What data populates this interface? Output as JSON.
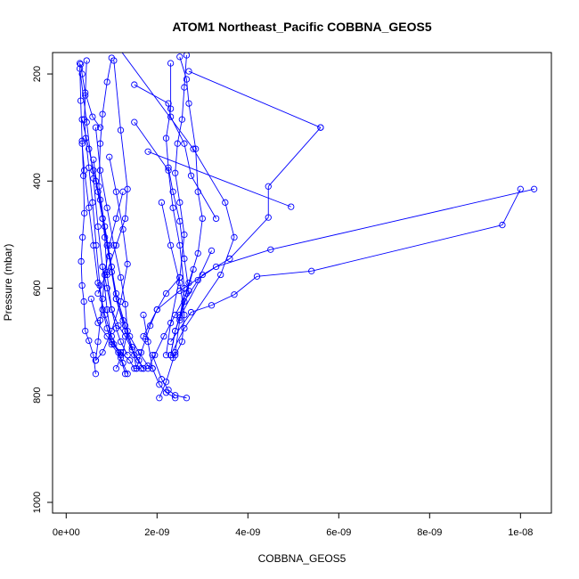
{
  "chart_data": {
    "type": "line",
    "title": "ATOM1 Northeast_Pacific COBBNA_GEOS5",
    "xlabel": "COBBNA_GEOS5",
    "ylabel": "Pressure (mbar)",
    "xlim": [
      -3e-10,
      1.068e-08
    ],
    "ylim": [
      1020,
      160
    ],
    "y_reversed": true,
    "x_ticks": [
      0,
      2e-09,
      4e-09,
      6e-09,
      8e-09,
      1e-08
    ],
    "x_tick_labels": [
      "0e+00",
      "2e-09",
      "4e-09",
      "6e-09",
      "8e-09",
      "1e-08"
    ],
    "y_ticks": [
      200,
      400,
      600,
      800,
      1000
    ],
    "y_tick_labels": [
      "200",
      "400",
      "600",
      "800",
      "1000"
    ],
    "series_color": "#0000ff",
    "marker": "open-circle",
    "series": [
      {
        "x": [
          3e-10,
          3.2e-10,
          3.5e-10,
          3.8e-10,
          4e-10,
          3.6e-10,
          3.3e-10,
          3.5e-10,
          3.9e-10,
          4.2e-10,
          5e-10,
          6e-10,
          6.5e-10
        ],
        "y": [
          180,
          250,
          325,
          390,
          460,
          505,
          550,
          595,
          625,
          680,
          698,
          725,
          760
        ]
      },
      {
        "x": [
          4.5e-10,
          4.2e-10,
          4e-10,
          4.3e-10,
          5e-10,
          5.8e-10,
          6.6e-10,
          7.4e-10,
          8e-10,
          9e-10,
          1e-09,
          1.2e-09,
          1.3e-09
        ],
        "y": [
          175,
          240,
          285,
          320,
          375,
          440,
          520,
          595,
          640,
          675,
          705,
          730,
          760
        ]
      },
      {
        "x": [
          1e-09,
          9e-10,
          8e-10,
          7.5e-10,
          7.2e-10,
          8.5e-10,
          1e-09,
          1.1e-09,
          1.3e-09,
          1.5e-09,
          1.7e-09
        ],
        "y": [
          170,
          215,
          275,
          330,
          410,
          485,
          560,
          620,
          680,
          725,
          750
        ]
      },
      {
        "x": [
          1.05e-09,
          1.2e-09,
          1.35e-09,
          1.3e-09,
          1.1e-09,
          9e-10,
          7e-10
        ],
        "y": [
          175,
          305,
          415,
          470,
          520,
          570,
          610
        ]
      },
      {
        "x": [
          1e-08,
          9.6e-09,
          5.4e-09,
          4.2e-09,
          3.7e-09,
          3.2e-09,
          2.75e-09,
          2.3e-09
        ],
        "y": [
          415,
          482,
          568,
          578,
          612,
          632,
          645,
          700
        ]
      },
      {
        "x": [
          1.03e-08,
          4.5e-09,
          3.3e-09,
          2.5e-09,
          2e-09,
          1.7e-09
        ],
        "y": [
          415,
          528,
          560,
          605,
          640,
          690
        ]
      },
      {
        "x": [
          5.6e-09,
          4.45e-09,
          4.45e-09,
          3.6e-09,
          3e-09,
          2.5e-09
        ],
        "y": [
          300,
          410,
          468,
          545,
          575,
          655
        ]
      },
      {
        "x": [
          2.7e-09,
          5.6e-09
        ],
        "y": [
          195,
          300
        ]
      },
      {
        "x": [
          1.5e-09,
          2.25e-09,
          2.3e-09,
          2.6e-09,
          2.75e-09,
          3.3e-09
        ],
        "y": [
          220,
          255,
          280,
          330,
          390,
          470
        ]
      },
      {
        "x": [
          1.1e-09,
          2.8e-09,
          3.5e-09,
          3.7e-09,
          3.4e-09,
          2.6e-09,
          2.3e-09
        ],
        "y": [
          145,
          340,
          440,
          505,
          575,
          675,
          725
        ]
      },
      {
        "x": [
          2.3e-09,
          2.3e-09,
          2.2e-09,
          2.25e-09,
          2.35e-09,
          2.5e-09,
          2.6e-09,
          2.7e-09,
          2.4e-09,
          2.3e-09
        ],
        "y": [
          180,
          265,
          320,
          375,
          420,
          475,
          545,
          605,
          680,
          725
        ]
      },
      {
        "x": [
          2.65e-09,
          2.6e-09,
          2.55e-09,
          2.45e-09,
          2.4e-09,
          2.5e-09,
          2.6e-09,
          2.5e-09,
          2.3e-09,
          2.2e-09
        ],
        "y": [
          165,
          225,
          285,
          330,
          385,
          440,
          500,
          580,
          665,
          725
        ]
      },
      {
        "x": [
          2.5e-09,
          2.65e-09,
          2.7e-09,
          2.85e-09,
          2.9e-09,
          3e-09,
          2.9e-09,
          2.7e-09,
          2.5e-09
        ],
        "y": [
          168,
          210,
          255,
          340,
          420,
          470,
          535,
          590,
          650
        ]
      },
      {
        "x": [
          1.8e-09,
          4.95e-09
        ],
        "y": [
          345,
          448
        ]
      },
      {
        "x": [
          1.5e-09,
          2.25e-09,
          2.35e-09,
          2.5e-09,
          2.6e-09,
          2.5e-09,
          2.4e-09,
          2.2e-09,
          2.05e-09
        ],
        "y": [
          290,
          380,
          450,
          520,
          600,
          660,
          720,
          775,
          805
        ]
      },
      {
        "x": [
          1.9e-09,
          2.1e-09,
          2.25e-09,
          2.4e-09,
          2.65e-09
        ],
        "y": [
          725,
          770,
          790,
          800,
          805
        ]
      },
      {
        "x": [
          1.7e-09,
          1.8e-09,
          1.9e-09,
          2.05e-09,
          2.2e-09,
          2.4e-09
        ],
        "y": [
          650,
          700,
          750,
          780,
          795,
          805
        ]
      },
      {
        "x": [
          6e-10,
          7e-10,
          8e-10,
          9e-10,
          1e-09,
          1.1e-09,
          1.25e-09,
          1.4e-09,
          1.6e-09,
          1.8e-09,
          1.9e-09
        ],
        "y": [
          360,
          420,
          470,
          520,
          570,
          620,
          660,
          690,
          720,
          745,
          750
        ]
      },
      {
        "x": [
          6.5e-10,
          7.5e-10,
          9e-10,
          1.05e-09,
          1.2e-09,
          1.3e-09,
          1.35e-09,
          1.25e-09,
          1.1e-09
        ],
        "y": [
          300,
          380,
          450,
          520,
          580,
          630,
          680,
          720,
          750
        ]
      },
      {
        "x": [
          9.5e-10,
          1.1e-09,
          1.25e-09,
          1.35e-09,
          1.2e-09,
          1e-09,
          8e-10,
          6.5e-10
        ],
        "y": [
          355,
          420,
          490,
          555,
          625,
          680,
          720,
          735
        ]
      },
      {
        "x": [
          3e-10,
          4.5e-10,
          6e-10,
          7e-10,
          8e-10,
          9e-10,
          1e-09,
          1.2e-09
        ],
        "y": [
          190,
          290,
          395,
          485,
          560,
          640,
          700,
          725
        ]
      },
      {
        "x": [
          3.5e-10,
          5e-10,
          6.5e-10,
          8e-10,
          9.5e-10,
          1.1e-09,
          1.3e-09,
          1.45e-09,
          1.55e-09
        ],
        "y": [
          285,
          340,
          400,
          470,
          540,
          610,
          670,
          710,
          750
        ]
      },
      {
        "x": [
          1.25e-09,
          1.1e-09,
          9.5e-10,
          8.5e-10,
          8e-10,
          7.5e-10,
          7e-10,
          6.5e-10
        ],
        "y": [
          420,
          470,
          520,
          575,
          620,
          660,
          700,
          735
        ]
      },
      {
        "x": [
          3.2e-10,
          3.5e-10,
          4.2e-10,
          5.8e-10,
          7.5e-10
        ],
        "y": [
          182,
          200,
          235,
          280,
          300
        ]
      },
      {
        "x": [
          6e-10,
          7.5e-10,
          8.5e-10,
          9e-10,
          1e-09,
          1.1e-09,
          1.2e-09,
          1.35e-09
        ],
        "y": [
          380,
          435,
          505,
          575,
          640,
          675,
          700,
          725
        ]
      },
      {
        "x": [
          8e-10,
          9e-10,
          1e-09,
          1.15e-09,
          1.3e-09,
          1.45e-09,
          1.6e-09,
          1.7e-09
        ],
        "y": [
          560,
          600,
          640,
          670,
          690,
          715,
          735,
          750
        ]
      },
      {
        "x": [
          5.5e-10,
          7e-10,
          9e-10,
          1.05e-09,
          1.2e-09,
          1.4e-09,
          1.5e-09,
          1.65e-09
        ],
        "y": [
          620,
          665,
          690,
          705,
          720,
          735,
          750,
          750
        ]
      },
      {
        "x": [
          3.5e-10,
          4e-10,
          5e-10,
          6e-10,
          7e-10,
          8.5e-10,
          1e-09,
          1.15e-09,
          1.25e-09,
          1.35e-09
        ],
        "y": [
          330,
          380,
          450,
          520,
          590,
          650,
          690,
          720,
          740,
          760
        ]
      },
      {
        "x": [
          2.5e-09,
          2.2e-09,
          2e-09,
          1.85e-09,
          1.75e-09,
          1.65e-09,
          1.55e-09
        ],
        "y": [
          580,
          610,
          640,
          670,
          695,
          720,
          750
        ]
      },
      {
        "x": [
          2.8e-09,
          2.65e-09,
          2.4e-09,
          2.15e-09,
          1.95e-09,
          1.8e-09
        ],
        "y": [
          565,
          610,
          650,
          690,
          725,
          750
        ]
      },
      {
        "x": [
          3.2e-09,
          2.9e-09,
          2.6e-09,
          2.4e-09,
          2.3e-09
        ],
        "y": [
          530,
          585,
          625,
          680,
          725
        ]
      },
      {
        "x": [
          2.1e-09,
          2.3e-09,
          2.5e-09,
          2.6e-09,
          2.55e-09,
          2.4e-09,
          2.35e-09
        ],
        "y": [
          440,
          520,
          590,
          650,
          700,
          725,
          730
        ]
      }
    ]
  }
}
